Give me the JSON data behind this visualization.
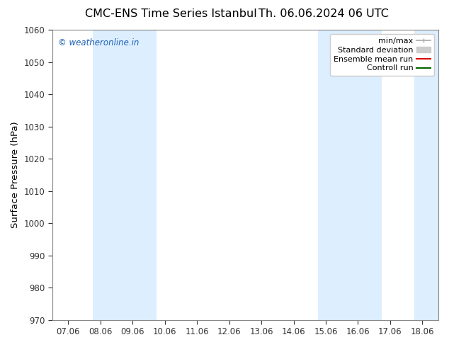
{
  "title_left": "CMC-ENS Time Series Istanbul",
  "title_right": "Th. 06.06.2024 06 UTC",
  "ylabel": "Surface Pressure (hPa)",
  "ylim": [
    970,
    1060
  ],
  "yticks": [
    970,
    980,
    990,
    1000,
    1010,
    1020,
    1030,
    1040,
    1050,
    1060
  ],
  "xtick_labels": [
    "07.06",
    "08.06",
    "09.06",
    "10.06",
    "11.06",
    "12.06",
    "13.06",
    "14.06",
    "15.06",
    "16.06",
    "17.06",
    "18.06"
  ],
  "xtick_positions": [
    0,
    1,
    2,
    3,
    4,
    5,
    6,
    7,
    8,
    9,
    10,
    11
  ],
  "xlim": [
    -0.5,
    11.5
  ],
  "shaded_bands": [
    {
      "x_start": 0.75,
      "x_end": 2.75,
      "color": "#ddeeff"
    },
    {
      "x_start": 7.75,
      "x_end": 9.75,
      "color": "#ddeeff"
    },
    {
      "x_start": 10.75,
      "x_end": 11.5,
      "color": "#ddeeff"
    }
  ],
  "watermark": "© weatheronline.in",
  "watermark_color": "#1a5fb4",
  "background_color": "#ffffff",
  "plot_bg_color": "#ffffff",
  "legend_entries": [
    {
      "label": "min/max",
      "color": "#aaaaaa",
      "lw": 1.2
    },
    {
      "label": "Standard deviation",
      "color": "#cccccc",
      "lw": 6
    },
    {
      "label": "Ensemble mean run",
      "color": "#dd0000",
      "lw": 1.5
    },
    {
      "label": "Controll run",
      "color": "#006600",
      "lw": 1.5
    }
  ],
  "spine_color": "#888888",
  "tick_color": "#333333",
  "title_fontsize": 11.5,
  "label_fontsize": 9.5,
  "tick_fontsize": 8.5,
  "legend_fontsize": 8,
  "watermark_fontsize": 8.5
}
